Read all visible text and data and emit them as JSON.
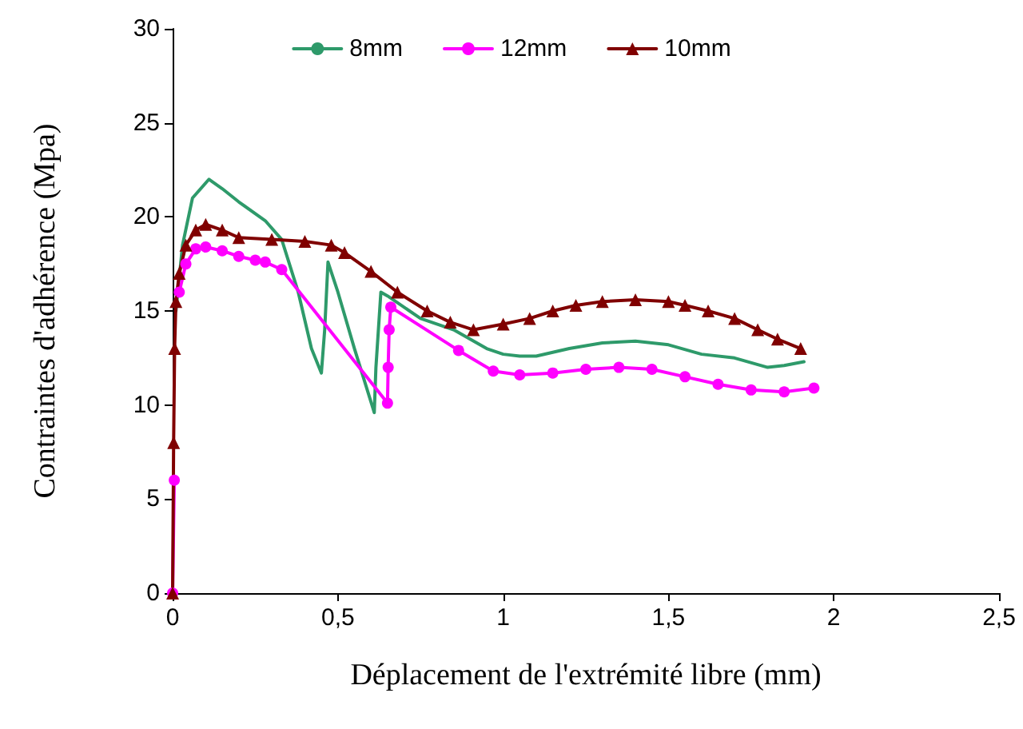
{
  "chart_data": {
    "type": "line",
    "xlabel": "Déplacement de l'extrémité libre (mm)",
    "ylabel": "Contraintes d'adhérence (Mpa)",
    "xlim": [
      0,
      2.5
    ],
    "xticks": [
      0,
      {
        "value": 0.5,
        "label": "0,5"
      },
      1,
      {
        "value": 1.5,
        "label": "1,5"
      },
      2,
      {
        "value": 2.5,
        "label": "2,5"
      }
    ],
    "ylim": [
      0,
      30
    ],
    "yticks": [
      0,
      5,
      10,
      15,
      20,
      25,
      30
    ],
    "grid": false,
    "legend": "top",
    "line_style": "solid",
    "series": [
      {
        "name": "8mm",
        "color": "#2e9a6a",
        "marker": "none",
        "x": [
          0.01,
          0.03,
          0.06,
          0.11,
          0.15,
          0.2,
          0.28,
          0.33,
          0.38,
          0.42,
          0.45,
          0.46,
          0.47,
          0.5,
          0.55,
          0.61,
          0.615,
          0.63,
          0.65,
          0.75,
          0.85,
          0.95,
          1.0,
          1.05,
          1.1,
          1.2,
          1.3,
          1.4,
          1.5,
          1.6,
          1.7,
          1.8,
          1.85,
          1.91
        ],
        "values": [
          15,
          18.5,
          21,
          22,
          21.5,
          20.8,
          19.8,
          18.8,
          16,
          13,
          11.7,
          14,
          17.6,
          16,
          13,
          9.6,
          12,
          16,
          15.8,
          14.6,
          14,
          13,
          12.7,
          12.6,
          12.6,
          13,
          13.3,
          13.4,
          13.2,
          12.7,
          12.5,
          12,
          12.1,
          12.3
        ]
      },
      {
        "name": "12mm",
        "color": "#ff00ff",
        "marker": "circle",
        "x": [
          0,
          0.005,
          0.01,
          0.02,
          0.04,
          0.07,
          0.1,
          0.15,
          0.2,
          0.25,
          0.28,
          0.33,
          0.65,
          0.652,
          0.655,
          0.66,
          0.865,
          0.97,
          1.05,
          1.15,
          1.25,
          1.35,
          1.45,
          1.55,
          1.65,
          1.75,
          1.85,
          1.94
        ],
        "values": [
          0,
          6,
          null,
          16,
          17.5,
          18.3,
          18.4,
          18.2,
          17.9,
          17.7,
          17.6,
          17.2,
          10.1,
          12,
          14,
          15.2,
          12.9,
          11.8,
          11.6,
          11.7,
          11.9,
          12,
          11.9,
          11.5,
          11.1,
          10.8,
          10.7,
          10.9
        ]
      },
      {
        "name": "10mm",
        "color": "#800000",
        "marker": "triangle",
        "x": [
          0,
          0.003,
          0.006,
          0.01,
          0.02,
          0.04,
          0.07,
          0.1,
          0.15,
          0.2,
          0.3,
          0.4,
          0.48,
          0.52,
          0.6,
          0.68,
          0.77,
          0.84,
          0.91,
          1.0,
          1.08,
          1.15,
          1.22,
          1.3,
          1.4,
          1.5,
          1.55,
          1.62,
          1.7,
          1.77,
          1.83,
          1.9
        ],
        "values": [
          0,
          8,
          13,
          15.5,
          17,
          18.5,
          19.3,
          19.6,
          19.3,
          18.9,
          18.8,
          18.7,
          18.5,
          18.1,
          17.1,
          16,
          15,
          14.4,
          14,
          14.3,
          14.6,
          15,
          15.3,
          15.5,
          15.6,
          15.5,
          15.3,
          15,
          14.6,
          14,
          13.5,
          13
        ]
      }
    ]
  }
}
